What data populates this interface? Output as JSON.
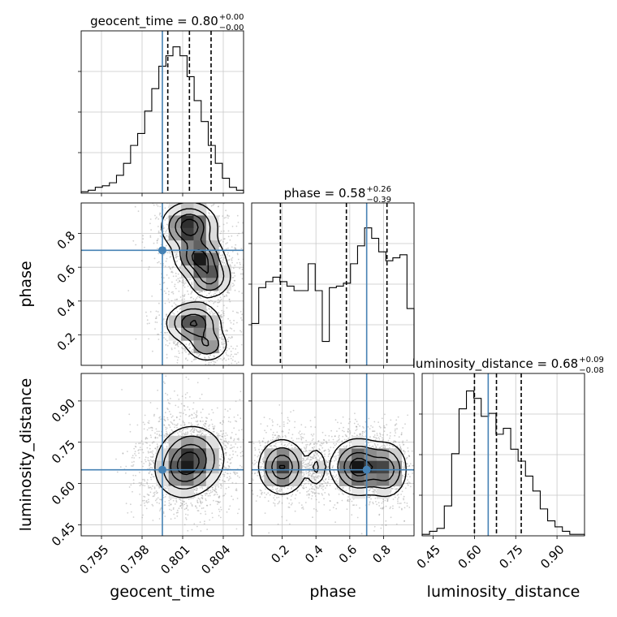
{
  "chart_data": {
    "type": "corner",
    "truth_color": "#4682b4",
    "parameters": [
      {
        "name": "geocent_time",
        "range": [
          0.7935,
          0.8055
        ],
        "ticks": [
          0.795,
          0.798,
          0.801,
          0.804
        ],
        "tick_labels": [
          "0.795",
          "0.798",
          "0.801",
          "0.804"
        ],
        "truth": 0.7995,
        "median": 0.8015,
        "quantiles": [
          0.7999,
          0.8015,
          0.8031
        ],
        "title": "geocent_time = 0.80",
        "title_plus": "+0.00",
        "title_minus": "−0.00",
        "hist": [
          0.01,
          0.02,
          0.04,
          0.05,
          0.07,
          0.12,
          0.2,
          0.32,
          0.4,
          0.55,
          0.7,
          0.85,
          0.92,
          0.98,
          0.92,
          0.78,
          0.62,
          0.48,
          0.32,
          0.2,
          0.1,
          0.04,
          0.02
        ]
      },
      {
        "name": "phase",
        "range": [
          0.02,
          0.98
        ],
        "ticks": [
          0.2,
          0.4,
          0.6,
          0.8
        ],
        "tick_labels": [
          "0.2",
          "0.4",
          "0.6",
          "0.8"
        ],
        "truth": 0.7,
        "median": 0.58,
        "quantiles": [
          0.19,
          0.58,
          0.82
        ],
        "title": "phase = 0.58",
        "title_plus": "+0.26",
        "title_minus": "−0.39",
        "hist": [
          0.28,
          0.52,
          0.56,
          0.59,
          0.56,
          0.53,
          0.5,
          0.5,
          0.68,
          0.5,
          0.16,
          0.52,
          0.53,
          0.55,
          0.68,
          0.8,
          0.92,
          0.85,
          0.76,
          0.7,
          0.72,
          0.74,
          0.38
        ]
      },
      {
        "name": "luminosity_distance",
        "range": [
          0.41,
          1.0
        ],
        "ticks": [
          0.45,
          0.6,
          0.75,
          0.9
        ],
        "tick_labels": [
          "0.45",
          "0.60",
          "0.75",
          "0.90"
        ],
        "truth": 0.65,
        "median": 0.68,
        "quantiles": [
          0.6,
          0.68,
          0.77
        ],
        "title": "luminosity_distance = 0.68",
        "title_plus": "+0.09",
        "title_minus": "−0.08",
        "hist": [
          0.01,
          0.03,
          0.05,
          0.2,
          0.55,
          0.85,
          0.97,
          0.92,
          0.8,
          0.82,
          0.68,
          0.72,
          0.58,
          0.5,
          0.4,
          0.3,
          0.18,
          0.1,
          0.06,
          0.03,
          0.01,
          0.01
        ]
      }
    ],
    "pairs": [
      {
        "x": "geocent_time",
        "y": "phase",
        "blobs": [
          {
            "cx": 0.8015,
            "cy": 0.84,
            "sx": 0.001,
            "sy": 0.07,
            "w": 1.0
          },
          {
            "cx": 0.8022,
            "cy": 0.66,
            "sx": 0.0009,
            "sy": 0.06,
            "w": 0.9
          },
          {
            "cx": 0.803,
            "cy": 0.54,
            "sx": 0.0008,
            "sy": 0.06,
            "w": 0.7
          },
          {
            "cx": 0.8018,
            "cy": 0.27,
            "sx": 0.001,
            "sy": 0.06,
            "w": 0.85
          },
          {
            "cx": 0.8028,
            "cy": 0.14,
            "sx": 0.0008,
            "sy": 0.05,
            "w": 0.55
          }
        ]
      },
      {
        "x": "geocent_time",
        "y": "luminosity_distance",
        "blobs": [
          {
            "cx": 0.8017,
            "cy": 0.69,
            "sx": 0.0012,
            "sy": 0.06,
            "w": 1.0
          },
          {
            "cx": 0.8008,
            "cy": 0.64,
            "sx": 0.001,
            "sy": 0.05,
            "w": 0.5
          }
        ]
      },
      {
        "x": "phase",
        "y": "luminosity_distance",
        "blobs": [
          {
            "cx": 0.2,
            "cy": 0.66,
            "sx": 0.07,
            "sy": 0.05,
            "w": 0.85
          },
          {
            "cx": 0.65,
            "cy": 0.66,
            "sx": 0.08,
            "sy": 0.05,
            "w": 1.0
          },
          {
            "cx": 0.82,
            "cy": 0.65,
            "sx": 0.06,
            "sy": 0.05,
            "w": 0.7
          },
          {
            "cx": 0.4,
            "cy": 0.66,
            "sx": 0.03,
            "sy": 0.04,
            "w": 0.35
          }
        ]
      }
    ]
  }
}
